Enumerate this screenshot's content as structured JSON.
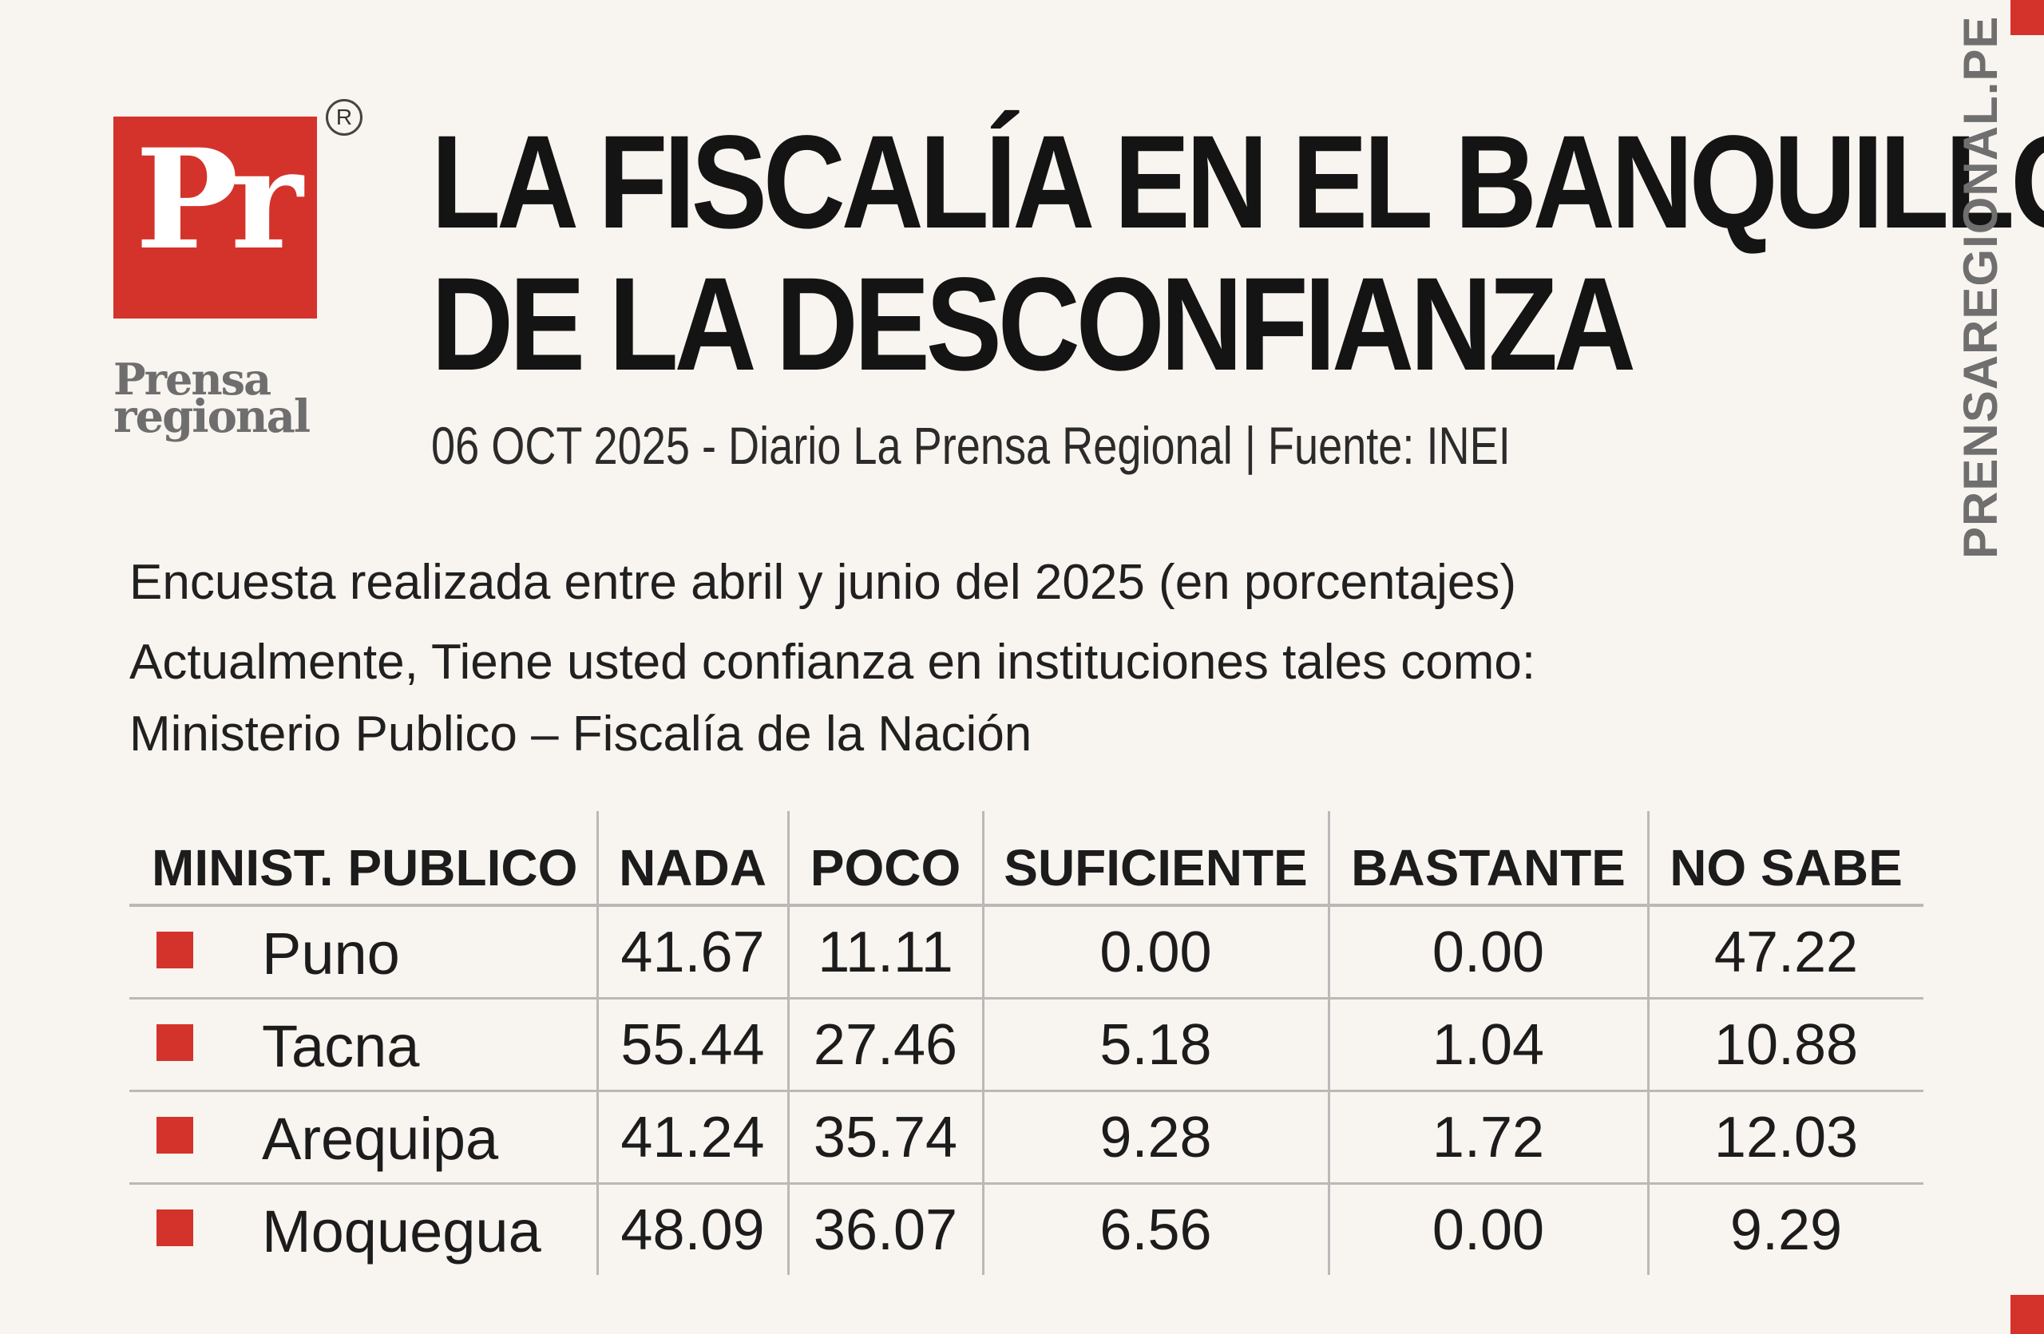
{
  "logo": {
    "mark": "Pr",
    "registered": "R",
    "wordmark_line1": "Prensa",
    "wordmark_line2": "regional"
  },
  "header": {
    "title_line1": "LA FISCALÍA EN EL BANQUILLO",
    "title_line2": "DE LA DESCONFIANZA",
    "byline": "06 OCT 2025 - Diario La Prensa Regional | Fuente: INEI"
  },
  "side_text": "PRENSAREGIONAL.PE",
  "intro": {
    "line1": "Encuesta realizada entre abril y junio del 2025 (en porcentajes)",
    "line2": "Actualmente, Tiene usted confianza en instituciones tales como:",
    "line3": "Ministerio Publico – Fiscalía de la Nación"
  },
  "colors": {
    "accent": "#d4332b",
    "background": "#f8f4ef",
    "text": "#1c1c1c",
    "rule": "#b9b9b9"
  },
  "chart_data": {
    "type": "table",
    "columns": [
      "MINIST. PUBLICO",
      "NADA",
      "POCO",
      "SUFICIENTE",
      "BASTANTE",
      "NO SABE"
    ],
    "rows": [
      {
        "region": "Puno",
        "values": [
          "41.67",
          "11.11",
          "0.00",
          "0.00",
          "47.22"
        ]
      },
      {
        "region": "Tacna",
        "values": [
          "55.44",
          "27.46",
          "5.18",
          "1.04",
          "10.88"
        ]
      },
      {
        "region": "Arequipa",
        "values": [
          "41.24",
          "35.74",
          "9.28",
          "1.72",
          "12.03"
        ]
      },
      {
        "region": "Moquegua",
        "values": [
          "48.09",
          "36.07",
          "6.56",
          "0.00",
          "9.29"
        ]
      }
    ]
  }
}
